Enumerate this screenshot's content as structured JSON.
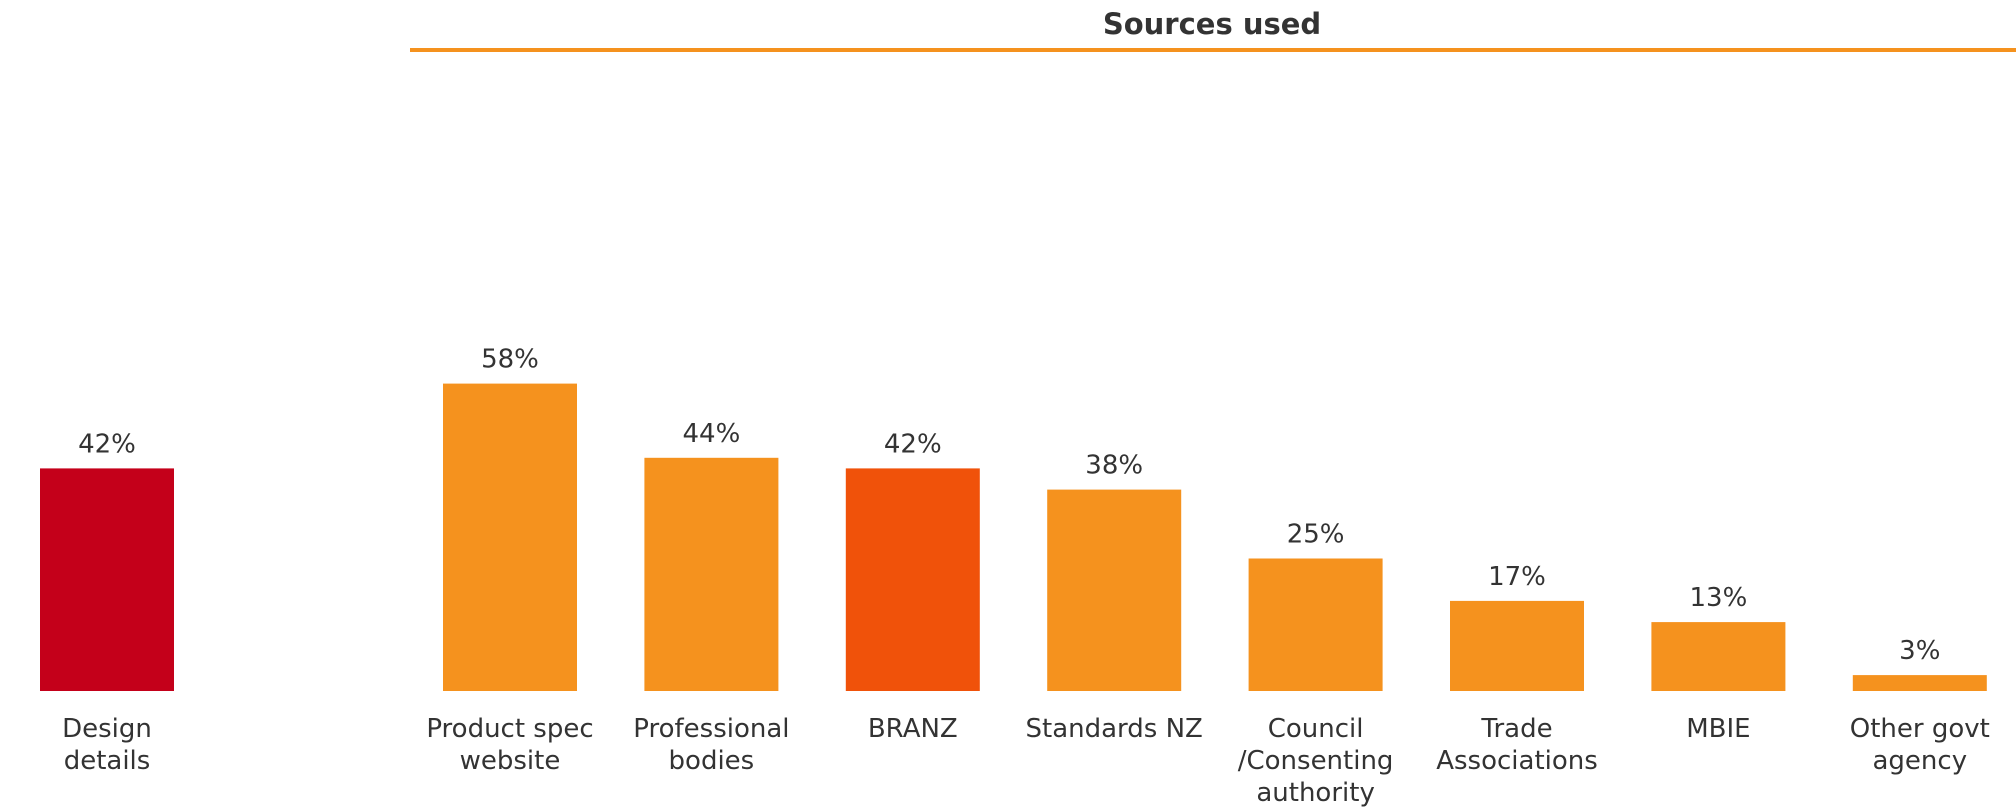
{
  "chart_data": {
    "type": "bar",
    "title": "Sources used",
    "xlabel": "",
    "ylabel": "",
    "ylim": [
      0,
      100
    ],
    "grid": false,
    "legend": "none",
    "groups": [
      {
        "name": "",
        "bars": [
          {
            "category": "Design details",
            "value": 42,
            "label": "42%",
            "color": "#C4001A"
          }
        ]
      },
      {
        "name": "Sources used",
        "bars": [
          {
            "category": "Product spec website",
            "value": 58,
            "label": "58%",
            "color": "#F5921E"
          },
          {
            "category": "Professional bodies",
            "value": 44,
            "label": "44%",
            "color": "#F5921E"
          },
          {
            "category": "BRANZ",
            "value": 42,
            "label": "42%",
            "color": "#F0520A"
          },
          {
            "category": "Standards NZ",
            "value": 38,
            "label": "38%",
            "color": "#F5921E"
          },
          {
            "category": "Council /Consenting authority",
            "value": 25,
            "label": "25%",
            "color": "#F5921E"
          },
          {
            "category": "Trade Associations",
            "value": 17,
            "label": "17%",
            "color": "#F5921E"
          },
          {
            "category": "MBIE",
            "value": 13,
            "label": "13%",
            "color": "#F5921E"
          },
          {
            "category": "Other govt agency",
            "value": 3,
            "label": "3%",
            "color": "#F5921E"
          }
        ]
      }
    ],
    "colors": {
      "accent": "#F5921E",
      "highlight": "#F0520A",
      "primary": "#C4001A",
      "rule": "#F5921E"
    }
  }
}
